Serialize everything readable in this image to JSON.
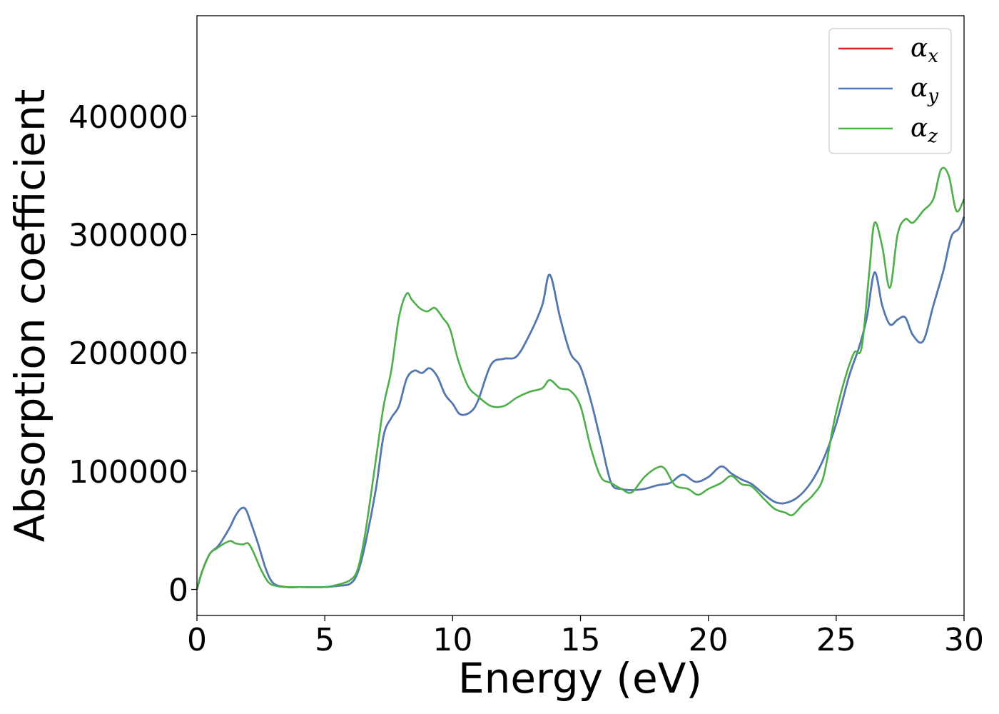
{
  "chart_data": {
    "type": "line",
    "title": "",
    "xlabel": "Energy (eV)",
    "ylabel": "Absorption coefficient",
    "xlim": [
      0,
      30
    ],
    "ylim": [
      -22000,
      485000
    ],
    "xticks": [
      0,
      5,
      10,
      15,
      20,
      25,
      30
    ],
    "yticks": [
      0,
      100000,
      200000,
      300000,
      400000
    ],
    "xtick_labels": [
      "0",
      "5",
      "10",
      "15",
      "20",
      "25",
      "30"
    ],
    "ytick_labels": [
      "0",
      "100000",
      "200000",
      "300000",
      "400000"
    ],
    "grid": false,
    "legend_position": "top-right",
    "series": [
      {
        "name": "α_x",
        "label_base": "α",
        "label_sub": "x",
        "color": "#e41a1c",
        "x": [
          0,
          0.2,
          0.5,
          0.8,
          1.0,
          1.3,
          1.5,
          1.7,
          1.9,
          2.1,
          2.4,
          2.7,
          3.0,
          3.5,
          4.0,
          5.0,
          5.5,
          6.0,
          6.3,
          6.6,
          7.0,
          7.3,
          7.6,
          7.9,
          8.2,
          8.5,
          8.8,
          9.1,
          9.4,
          9.7,
          10.0,
          10.3,
          10.7,
          11.0,
          11.5,
          12.0,
          12.5,
          13.0,
          13.5,
          13.8,
          14.2,
          14.6,
          15.0,
          15.4,
          15.8,
          16.2,
          16.6,
          17.0,
          17.5,
          18.0,
          18.5,
          19.0,
          19.5,
          20.0,
          20.5,
          20.9,
          21.3,
          21.7,
          22.2,
          22.6,
          23.0,
          23.5,
          24.0,
          24.5,
          25.0,
          25.5,
          25.9,
          26.2,
          26.5,
          26.8,
          27.1,
          27.4,
          27.7,
          28.0,
          28.4,
          28.8,
          29.2,
          29.5,
          29.8,
          30.0
        ],
        "y": [
          0,
          15000,
          30000,
          36000,
          42000,
          53000,
          62000,
          68000,
          68000,
          57000,
          38000,
          17000,
          5000,
          2000,
          2000,
          2000,
          3000,
          5000,
          15000,
          40000,
          85000,
          130000,
          145000,
          155000,
          178000,
          185000,
          183000,
          187000,
          180000,
          165000,
          157000,
          148000,
          150000,
          160000,
          190000,
          195000,
          197000,
          215000,
          240000,
          266000,
          230000,
          200000,
          188000,
          160000,
          125000,
          90000,
          85000,
          84000,
          85000,
          88000,
          90000,
          97000,
          91000,
          95000,
          104000,
          98000,
          93000,
          89000,
          80000,
          74000,
          73000,
          78000,
          90000,
          110000,
          140000,
          180000,
          205000,
          230000,
          268000,
          240000,
          224000,
          228000,
          230000,
          215000,
          210000,
          240000,
          270000,
          298000,
          305000,
          315000
        ]
      },
      {
        "name": "α_y",
        "label_base": "α",
        "label_sub": "y",
        "color": "#4a7bb7",
        "x": [
          0,
          0.2,
          0.5,
          0.8,
          1.0,
          1.3,
          1.5,
          1.7,
          1.9,
          2.1,
          2.4,
          2.7,
          3.0,
          3.5,
          4.0,
          5.0,
          5.5,
          6.0,
          6.3,
          6.6,
          7.0,
          7.3,
          7.6,
          7.9,
          8.2,
          8.5,
          8.8,
          9.1,
          9.4,
          9.7,
          10.0,
          10.3,
          10.7,
          11.0,
          11.5,
          12.0,
          12.5,
          13.0,
          13.5,
          13.8,
          14.2,
          14.6,
          15.0,
          15.4,
          15.8,
          16.2,
          16.6,
          17.0,
          17.5,
          18.0,
          18.5,
          19.0,
          19.5,
          20.0,
          20.5,
          20.9,
          21.3,
          21.7,
          22.2,
          22.6,
          23.0,
          23.5,
          24.0,
          24.5,
          25.0,
          25.5,
          25.9,
          26.2,
          26.5,
          26.8,
          27.1,
          27.4,
          27.7,
          28.0,
          28.4,
          28.8,
          29.2,
          29.5,
          29.8,
          30.0
        ],
        "y": [
          0,
          15000,
          30000,
          36000,
          42000,
          53000,
          62000,
          68000,
          68000,
          57000,
          38000,
          17000,
          5000,
          2000,
          2000,
          2000,
          3000,
          5000,
          15000,
          40000,
          85000,
          130000,
          145000,
          155000,
          178000,
          185000,
          183000,
          187000,
          180000,
          165000,
          157000,
          148000,
          150000,
          160000,
          190000,
          195000,
          197000,
          215000,
          240000,
          266000,
          230000,
          200000,
          188000,
          160000,
          125000,
          90000,
          85000,
          84000,
          85000,
          88000,
          90000,
          97000,
          91000,
          95000,
          104000,
          98000,
          93000,
          89000,
          80000,
          74000,
          73000,
          78000,
          90000,
          110000,
          140000,
          180000,
          205000,
          230000,
          268000,
          240000,
          224000,
          228000,
          230000,
          215000,
          210000,
          240000,
          270000,
          298000,
          305000,
          315000
        ]
      },
      {
        "name": "α_z",
        "label_base": "α",
        "label_sub": "z",
        "color": "#4daf4a",
        "x": [
          0,
          0.2,
          0.5,
          0.8,
          1.0,
          1.3,
          1.5,
          1.8,
          2.0,
          2.2,
          2.5,
          2.8,
          3.1,
          3.5,
          4.0,
          5.0,
          5.5,
          6.0,
          6.3,
          6.6,
          7.0,
          7.3,
          7.6,
          7.9,
          8.2,
          8.4,
          8.7,
          9.0,
          9.3,
          9.6,
          9.9,
          10.2,
          10.6,
          11.0,
          11.5,
          12.0,
          12.5,
          13.0,
          13.5,
          13.8,
          14.2,
          14.6,
          15.0,
          15.4,
          15.8,
          16.2,
          16.6,
          17.0,
          17.5,
          18.0,
          18.3,
          18.7,
          19.2,
          19.6,
          20.0,
          20.5,
          20.9,
          21.3,
          21.7,
          22.2,
          22.6,
          23.0,
          23.3,
          23.7,
          24.1,
          24.5,
          24.9,
          25.3,
          25.7,
          26.0,
          26.3,
          26.5,
          26.8,
          27.1,
          27.4,
          27.7,
          28.0,
          28.4,
          28.8,
          29.1,
          29.4,
          29.7,
          30.0
        ],
        "y": [
          0,
          15000,
          30000,
          35000,
          38000,
          41000,
          39000,
          38000,
          39000,
          32000,
          17000,
          6000,
          3000,
          2000,
          2000,
          2000,
          4000,
          8000,
          18000,
          50000,
          110000,
          155000,
          185000,
          230000,
          250000,
          245000,
          238000,
          235000,
          238000,
          230000,
          220000,
          195000,
          172000,
          163000,
          155000,
          155000,
          162000,
          167000,
          170000,
          177000,
          170000,
          168000,
          155000,
          120000,
          95000,
          90000,
          85000,
          82000,
          95000,
          103000,
          102000,
          88000,
          85000,
          80000,
          85000,
          90000,
          96000,
          89000,
          87000,
          76000,
          68000,
          65000,
          63000,
          72000,
          80000,
          95000,
          140000,
          175000,
          200000,
          205000,
          270000,
          310000,
          290000,
          255000,
          300000,
          313000,
          310000,
          320000,
          330000,
          355000,
          350000,
          320000,
          330000
        ]
      }
    ]
  }
}
